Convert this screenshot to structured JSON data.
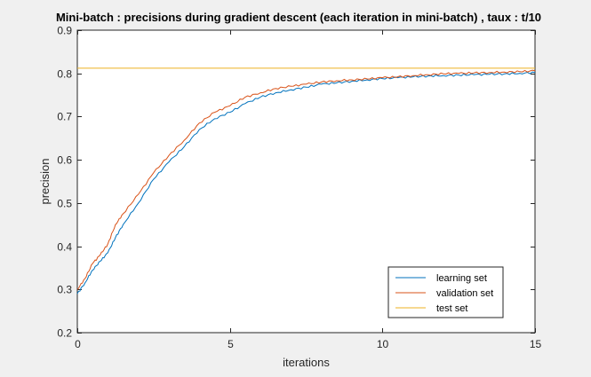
{
  "chart_data": {
    "type": "line",
    "title": "Mini-batch : precisions during gradient descent (each iteration in mini-batch) , taux : t/10",
    "xlabel": "iterations",
    "ylabel": "precision",
    "xlim": [
      0,
      15
    ],
    "ylim": [
      0.2,
      0.9
    ],
    "xticks": [
      0,
      5,
      10,
      15
    ],
    "yticks": [
      0.2,
      0.3,
      0.4,
      0.5,
      0.6,
      0.7,
      0.8,
      0.9
    ],
    "grid": false,
    "legend_position": "bottom-right",
    "series": [
      {
        "name": "learning set",
        "color": "#0072BD",
        "x": [
          0,
          0.25,
          0.5,
          0.75,
          1,
          1.25,
          1.5,
          2,
          2.5,
          3,
          3.5,
          4,
          4.5,
          5,
          5.5,
          6,
          6.5,
          7,
          7.5,
          8,
          8.5,
          9,
          9.5,
          10,
          10.5,
          11,
          11.5,
          12,
          12.5,
          13,
          13.5,
          14,
          14.5,
          15
        ],
        "values": [
          0.29,
          0.315,
          0.345,
          0.365,
          0.385,
          0.42,
          0.45,
          0.5,
          0.555,
          0.595,
          0.63,
          0.67,
          0.695,
          0.71,
          0.73,
          0.745,
          0.755,
          0.762,
          0.768,
          0.775,
          0.778,
          0.782,
          0.785,
          0.788,
          0.79,
          0.792,
          0.794,
          0.795,
          0.796,
          0.797,
          0.798,
          0.799,
          0.8,
          0.802
        ]
      },
      {
        "name": "validation set",
        "color": "#D95319",
        "x": [
          0,
          0.25,
          0.5,
          0.75,
          1,
          1.25,
          1.5,
          2,
          2.5,
          3,
          3.5,
          4,
          4.5,
          5,
          5.5,
          6,
          6.5,
          7,
          7.5,
          8,
          8.5,
          9,
          9.5,
          10,
          10.5,
          11,
          11.5,
          12,
          12.5,
          13,
          13.5,
          14,
          14.5,
          15
        ],
        "values": [
          0.3,
          0.325,
          0.36,
          0.38,
          0.405,
          0.45,
          0.475,
          0.52,
          0.57,
          0.61,
          0.645,
          0.685,
          0.71,
          0.725,
          0.745,
          0.755,
          0.765,
          0.77,
          0.775,
          0.78,
          0.783,
          0.785,
          0.787,
          0.79,
          0.792,
          0.795,
          0.797,
          0.799,
          0.8,
          0.801,
          0.802,
          0.803,
          0.804,
          0.806
        ]
      },
      {
        "name": "test set",
        "color": "#EDB120",
        "x": [
          0,
          15
        ],
        "values": [
          0.812,
          0.812
        ]
      }
    ]
  }
}
